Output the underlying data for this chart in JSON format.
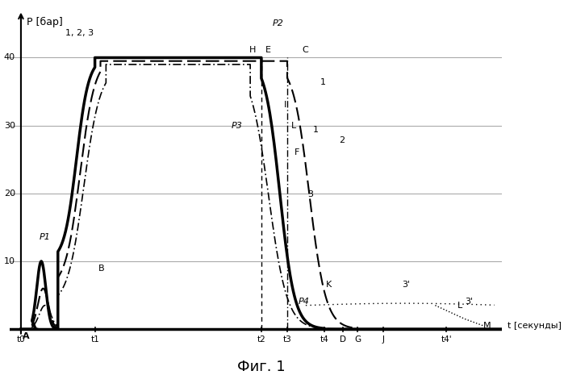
{
  "title": "Фиг. 1",
  "xlabel": "t [секунды]",
  "ylabel": "P [бар]",
  "ylim": [
    -2,
    48
  ],
  "xlim": [
    -0.3,
    13
  ],
  "yticks": [
    10,
    20,
    30,
    40
  ],
  "background_color": "#ffffff",
  "text_color": "#000000",
  "grid_color": "#aaaaaa",
  "curve1_color": "#000000",
  "curve2_color": "#000000",
  "curve3_color": "#000000",
  "t0": 0,
  "t1": 2.0,
  "t2": 6.5,
  "t3": 7.2,
  "t4": 8.2,
  "t4p": 11.5,
  "D": 8.7,
  "G": 9.1,
  "J": 9.8
}
